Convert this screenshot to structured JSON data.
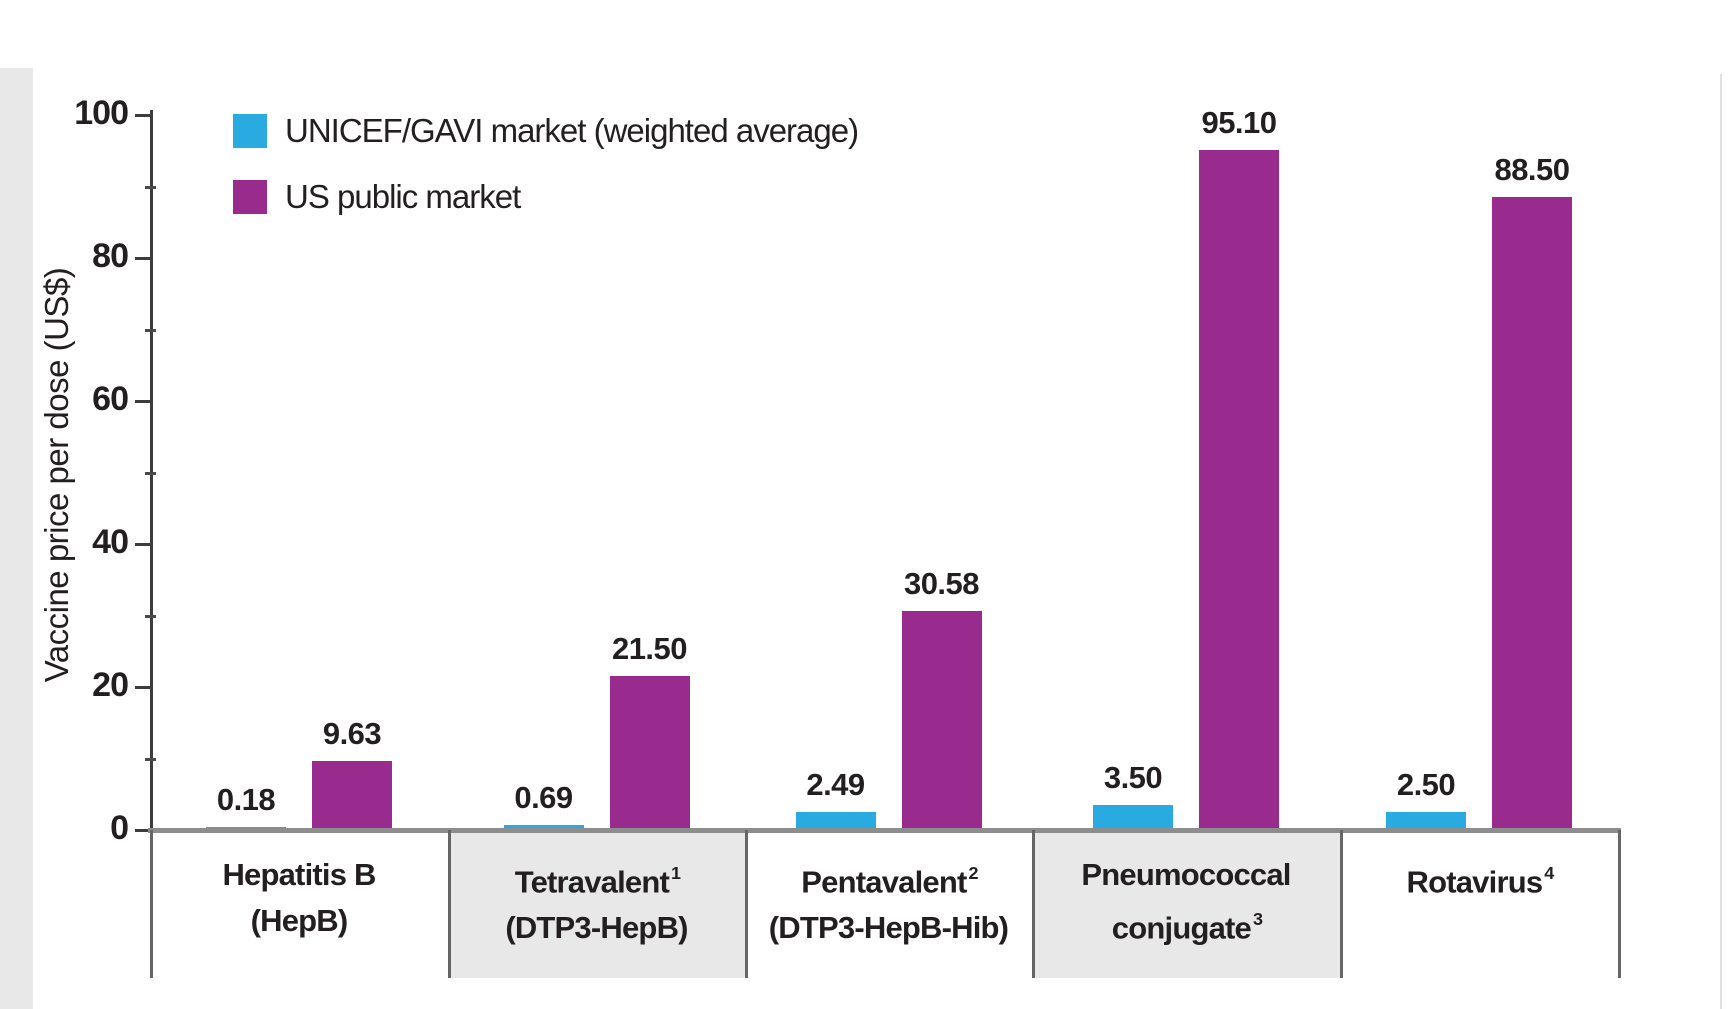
{
  "chart_data": {
    "type": "bar",
    "title": "",
    "ylabel": "Vaccine price per dose (US$)",
    "ylim": [
      0,
      100
    ],
    "yticks_major": [
      0,
      20,
      40,
      60,
      80,
      100
    ],
    "yticks_minor": [
      10,
      30,
      50,
      70,
      90
    ],
    "grid": false,
    "legend_position": "top-left",
    "categories": [
      "Hepatitis B (HepB)",
      "Tetravalent¹ (DTP3-HepB)",
      "Pentavalent² (DTP3-HepB-Hib)",
      "Pneumococcal conjugate³",
      "Rotavirus⁴"
    ],
    "category_labels": [
      {
        "line1": "Hepatitis B",
        "line1_sup": "",
        "line2": "(HepB)",
        "line2_sup": "",
        "shaded": false
      },
      {
        "line1": "Tetravalent",
        "line1_sup": "1",
        "line2": "(DTP3-HepB)",
        "line2_sup": "",
        "shaded": true
      },
      {
        "line1": "Pentavalent",
        "line1_sup": "2",
        "line2": "(DTP3-HepB-Hib)",
        "line2_sup": "",
        "shaded": false
      },
      {
        "line1": "Pneumococcal",
        "line1_sup": "",
        "line2": "conjugate",
        "line2_sup": "3",
        "shaded": true
      },
      {
        "line1": "Rotavirus",
        "line1_sup": "4",
        "line2": "",
        "line2_sup": "",
        "shaded": false
      }
    ],
    "series": [
      {
        "name": "UNICEF/GAVI market (weighted average)",
        "color": "#29abe2",
        "values": [
          0.18,
          0.69,
          2.49,
          3.5,
          2.5
        ],
        "value_labels": [
          "0.18",
          "0.69",
          "2.49",
          "3.50",
          "2.50"
        ]
      },
      {
        "name": "US public market",
        "color": "#992b8f",
        "values": [
          9.63,
          21.5,
          30.58,
          95.1,
          88.5
        ],
        "value_labels": [
          "9.63",
          "21.50",
          "30.58",
          "95.10",
          "88.50"
        ]
      }
    ]
  },
  "colors": {
    "unicef_gavi": "#29abe2",
    "us_public": "#992b8f",
    "axis": "#3c3c3c",
    "baseline": "#8d8d8d",
    "shaded_box": "#e8e8e8",
    "text": "#231f20"
  }
}
